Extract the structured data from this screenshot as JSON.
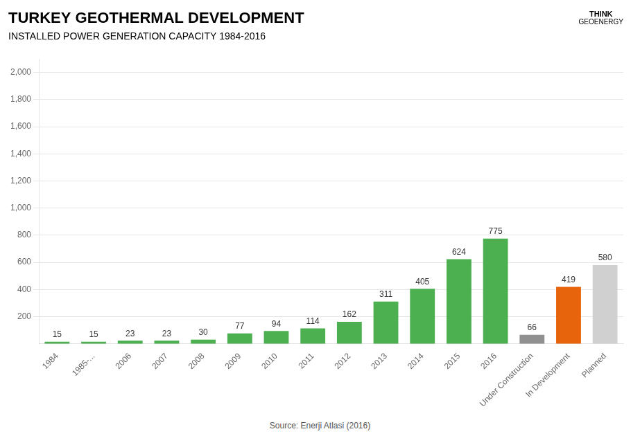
{
  "chart_data": {
    "type": "bar",
    "title": "TURKEY GEOTHERMAL DEVELOPMENT",
    "subtitle": "INSTALLED POWER GENERATION CAPACITY 1984-2016",
    "annotations": [
      "Source: Enerji Atlasi (2016)",
      "THINK",
      "GEOENERGY"
    ],
    "categories": [
      "1984",
      "1985-...",
      "2006",
      "2007",
      "2008",
      "2009",
      "2010",
      "2011",
      "2012",
      "2013",
      "2014",
      "2015",
      "2016",
      "Under Construction",
      "In Development",
      "Planned"
    ],
    "values": [
      15,
      15,
      23,
      23,
      30,
      77,
      94,
      114,
      162,
      311,
      405,
      624,
      775,
      66,
      419,
      580
    ],
    "colors": [
      "#4caf50",
      "#4caf50",
      "#4caf50",
      "#4caf50",
      "#4caf50",
      "#4caf50",
      "#4caf50",
      "#4caf50",
      "#4caf50",
      "#4caf50",
      "#4caf50",
      "#4caf50",
      "#4caf50",
      "#909090",
      "#e8640c",
      "#d0d0d0"
    ],
    "ylim": [
      0,
      2100
    ],
    "yticks": [
      200,
      400,
      600,
      800,
      {
        "value": 1000,
        "label": "1,000"
      },
      {
        "value": 1200,
        "label": "1,200"
      },
      {
        "value": 1400,
        "label": "1,400"
      },
      {
        "value": 1600,
        "label": "1,600"
      },
      {
        "value": 1800,
        "label": "1,800"
      },
      {
        "value": 2000,
        "label": "2,000"
      }
    ],
    "grid": true,
    "data_labels": true
  }
}
